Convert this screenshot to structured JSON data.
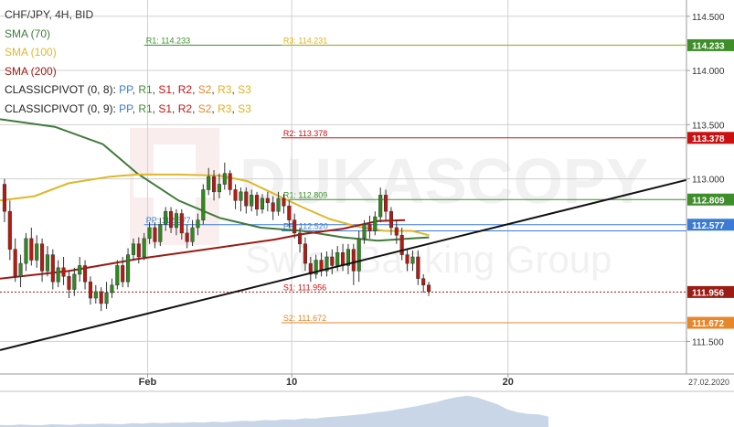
{
  "chart_data": {
    "type": "candlestick",
    "title": "CHF/JPY, 4H, BID",
    "watermark": {
      "brand": "DUKASCOPY",
      "subtitle": "Swiss Banking Group"
    },
    "indicators": [
      {
        "label": "SMA (70)",
        "color": "#3f7a3a"
      },
      {
        "label": "SMA (100)",
        "color": "#e0b72a"
      },
      {
        "label": "SMA (200)",
        "color": "#9b1c14"
      },
      {
        "label": "CLASSICPIVOT (0, 8):",
        "parts": [
          {
            "text": "PP",
            "color": "#3a7bd5"
          },
          {
            "text": "R1",
            "color": "#3e8e2a"
          },
          {
            "text": "S1",
            "color": "#cc1010"
          },
          {
            "text": "R2",
            "color": "#cc1010"
          },
          {
            "text": "S2",
            "color": "#e8862a"
          },
          {
            "text": "R3",
            "color": "#e0b020"
          },
          {
            "text": "S3",
            "color": "#e0b020"
          }
        ]
      },
      {
        "label": "CLASSICPIVOT (0, 9):",
        "parts": [
          {
            "text": "PP",
            "color": "#3a7bd5"
          },
          {
            "text": "R1",
            "color": "#3e8e2a"
          },
          {
            "text": "S1",
            "color": "#cc1010"
          },
          {
            "text": "R2",
            "color": "#cc1010"
          },
          {
            "text": "S2",
            "color": "#e8862a"
          },
          {
            "text": "R3",
            "color": "#e0b020"
          },
          {
            "text": "S3",
            "color": "#e0b020"
          }
        ]
      }
    ],
    "y_ticks": [
      "114.500",
      "114.000",
      "113.500",
      "113.000",
      "111.500"
    ],
    "ylim": [
      111.2,
      114.65
    ],
    "x_ticks": [
      {
        "label": "Feb",
        "x": 0.215
      },
      {
        "label": "10",
        "x": 0.425
      },
      {
        "label": "20",
        "x": 0.74
      }
    ],
    "date_label": "27.02.2020",
    "pivot_lines": [
      {
        "value": 114.233,
        "color": "#3e8e2a",
        "start": 0.21,
        "label": "R1: 114.233",
        "price_label": "114.233"
      },
      {
        "value": 114.231,
        "color": "#e0b020",
        "start": 0.41,
        "label": "R3: 114.231",
        "price_label": null
      },
      {
        "value": 113.378,
        "color": "#cc1010",
        "start": 0.41,
        "label": "R2: 113.378",
        "price_label": "113.378"
      },
      {
        "value": 112.809,
        "color": "#3e8e2a",
        "start": 0.41,
        "label": "R1: 112.809",
        "price_label": "112.809"
      },
      {
        "value": 112.577,
        "color": "#3a7bd5",
        "start": 0.21,
        "label": "PP: 112.577",
        "price_label": "112.577"
      },
      {
        "value": 112.52,
        "color": "#3a7bd5",
        "start": 0.41,
        "label": "PP: 112.520",
        "price_label": null
      },
      {
        "value": 111.672,
        "color": "#e8862a",
        "start": 0.41,
        "label": "S2: 111.672",
        "price_label": "111.672"
      }
    ],
    "current_price": {
      "value": 111.956,
      "color": "#9b1c14",
      "label": "S1: 111.956",
      "price_label": "111.956"
    },
    "trendline": {
      "from": [
        0.0,
        111.42
      ],
      "to": [
        1.0,
        112.99
      ],
      "color": "#111111"
    },
    "candles": [
      [
        112.95,
        112.7,
        113.0,
        112.6
      ],
      [
        112.7,
        112.35,
        112.8,
        112.25
      ],
      [
        112.35,
        112.1,
        112.45,
        112.05
      ],
      [
        112.1,
        112.22,
        112.3,
        112.0
      ],
      [
        112.22,
        112.45,
        112.5,
        112.15
      ],
      [
        112.45,
        112.25,
        112.55,
        112.2
      ],
      [
        112.25,
        112.4,
        112.48,
        112.18
      ],
      [
        112.4,
        112.15,
        112.45,
        112.05
      ],
      [
        112.15,
        112.3,
        112.38,
        112.1
      ],
      [
        112.3,
        112.05,
        112.35,
        111.98
      ],
      [
        112.05,
        112.18,
        112.25,
        112.0
      ],
      [
        112.18,
        112.1,
        112.28,
        112.02
      ],
      [
        112.1,
        111.98,
        112.15,
        111.9
      ],
      [
        111.98,
        112.12,
        112.18,
        111.92
      ],
      [
        112.12,
        112.2,
        112.28,
        112.05
      ],
      [
        112.2,
        112.05,
        112.25,
        111.98
      ],
      [
        112.05,
        111.9,
        112.1,
        111.84
      ],
      [
        111.9,
        111.96,
        112.02,
        111.85
      ],
      [
        111.96,
        111.85,
        112.0,
        111.78
      ],
      [
        111.85,
        111.95,
        112.05,
        111.8
      ],
      [
        111.95,
        112.02,
        112.08,
        111.9
      ],
      [
        112.02,
        112.2,
        112.25,
        111.98
      ],
      [
        112.2,
        112.05,
        112.28,
        112.0
      ],
      [
        112.05,
        112.3,
        112.36,
        112.0
      ],
      [
        112.3,
        112.4,
        112.45,
        112.25
      ],
      [
        112.4,
        112.28,
        112.46,
        112.22
      ],
      [
        112.28,
        112.45,
        112.5,
        112.25
      ],
      [
        112.45,
        112.55,
        112.6,
        112.4
      ],
      [
        112.55,
        112.42,
        112.6,
        112.36
      ],
      [
        112.42,
        112.58,
        112.64,
        112.38
      ],
      [
        112.58,
        112.7,
        112.74,
        112.52
      ],
      [
        112.7,
        112.55,
        112.74,
        112.5
      ],
      [
        112.55,
        112.68,
        112.72,
        112.48
      ],
      [
        112.68,
        112.5,
        112.72,
        112.44
      ],
      [
        112.5,
        112.42,
        112.58,
        112.36
      ],
      [
        112.42,
        112.55,
        112.62,
        112.38
      ],
      [
        112.55,
        112.62,
        112.68,
        112.48
      ],
      [
        112.62,
        112.9,
        112.95,
        112.58
      ],
      [
        112.9,
        113.02,
        113.1,
        112.85
      ],
      [
        113.02,
        112.88,
        113.08,
        112.8
      ],
      [
        112.88,
        112.95,
        113.05,
        112.82
      ],
      [
        112.95,
        113.05,
        113.15,
        112.9
      ],
      [
        113.05,
        112.9,
        113.08,
        112.85
      ],
      [
        112.9,
        112.8,
        112.95,
        112.72
      ],
      [
        112.8,
        112.88,
        112.92,
        112.7
      ],
      [
        112.88,
        112.75,
        112.92,
        112.68
      ],
      [
        112.75,
        112.85,
        112.9,
        112.7
      ],
      [
        112.85,
        112.72,
        112.88,
        112.66
      ],
      [
        112.72,
        112.82,
        112.86,
        112.68
      ],
      [
        112.82,
        112.78,
        112.88,
        112.7
      ],
      [
        112.78,
        112.7,
        112.84,
        112.62
      ],
      [
        112.7,
        112.82,
        112.88,
        112.66
      ],
      [
        112.82,
        112.75,
        112.86,
        112.68
      ],
      [
        112.75,
        112.62,
        112.8,
        112.55
      ],
      [
        112.62,
        112.5,
        112.68,
        112.45
      ],
      [
        112.5,
        112.4,
        112.55,
        112.32
      ],
      [
        112.4,
        112.22,
        112.46,
        112.15
      ],
      [
        112.22,
        112.12,
        112.28,
        112.05
      ],
      [
        112.12,
        112.25,
        112.3,
        112.08
      ],
      [
        112.25,
        112.15,
        112.32,
        112.1
      ],
      [
        112.15,
        112.28,
        112.33,
        112.1
      ],
      [
        112.28,
        112.2,
        112.35,
        112.12
      ],
      [
        112.2,
        112.32,
        112.38,
        112.15
      ],
      [
        112.32,
        112.2,
        112.4,
        112.15
      ],
      [
        112.2,
        112.35,
        112.4,
        112.12
      ],
      [
        112.35,
        112.15,
        112.4,
        112.02
      ],
      [
        112.15,
        112.45,
        112.52,
        112.05
      ],
      [
        112.45,
        112.58,
        112.62,
        112.4
      ],
      [
        112.58,
        112.52,
        112.66,
        112.45
      ],
      [
        112.52,
        112.65,
        112.7,
        112.48
      ],
      [
        112.65,
        112.85,
        112.92,
        112.6
      ],
      [
        112.85,
        112.7,
        112.9,
        112.62
      ],
      [
        112.7,
        112.55,
        112.74,
        112.48
      ],
      [
        112.55,
        112.48,
        112.62,
        112.4
      ],
      [
        112.48,
        112.3,
        112.55,
        112.25
      ],
      [
        112.3,
        112.22,
        112.36,
        112.15
      ],
      [
        112.22,
        112.28,
        112.34,
        112.15
      ],
      [
        112.28,
        112.08,
        112.34,
        112.02
      ],
      [
        112.08,
        112.02,
        112.12,
        111.95
      ],
      [
        112.02,
        111.96,
        112.05,
        111.92
      ]
    ],
    "sma70": [
      [
        0.0,
        113.55
      ],
      [
        0.08,
        113.48
      ],
      [
        0.15,
        113.32
      ],
      [
        0.2,
        113.05
      ],
      [
        0.26,
        112.8
      ],
      [
        0.32,
        112.64
      ],
      [
        0.38,
        112.55
      ],
      [
        0.44,
        112.52
      ],
      [
        0.5,
        112.46
      ],
      [
        0.55,
        112.43
      ],
      [
        0.6,
        112.45
      ],
      [
        0.625,
        112.46
      ]
    ],
    "sma100": [
      [
        0.0,
        112.8
      ],
      [
        0.05,
        112.84
      ],
      [
        0.1,
        112.96
      ],
      [
        0.16,
        113.02
      ],
      [
        0.2,
        113.04
      ],
      [
        0.26,
        113.04
      ],
      [
        0.32,
        113.03
      ],
      [
        0.36,
        112.98
      ],
      [
        0.4,
        112.86
      ],
      [
        0.44,
        112.74
      ],
      [
        0.48,
        112.63
      ],
      [
        0.52,
        112.56
      ],
      [
        0.56,
        112.52
      ],
      [
        0.6,
        112.52
      ],
      [
        0.625,
        112.48
      ]
    ],
    "sma200": [
      [
        0.0,
        112.08
      ],
      [
        0.1,
        112.15
      ],
      [
        0.2,
        112.26
      ],
      [
        0.3,
        112.35
      ],
      [
        0.4,
        112.44
      ],
      [
        0.44,
        112.49
      ],
      [
        0.5,
        112.54
      ],
      [
        0.55,
        112.61
      ],
      [
        0.59,
        112.62
      ]
    ],
    "volume_profile": [
      0.06,
      0.05,
      0.07,
      0.06,
      0.05,
      0.08,
      0.07,
      0.06,
      0.09,
      0.08,
      0.1,
      0.09,
      0.08,
      0.11,
      0.1,
      0.12,
      0.11,
      0.13,
      0.12,
      0.14,
      0.13,
      0.15,
      0.14,
      0.16,
      0.18,
      0.17,
      0.2,
      0.19,
      0.22,
      0.21,
      0.25,
      0.24,
      0.28,
      0.3,
      0.32,
      0.35,
      0.38,
      0.42,
      0.45,
      0.5,
      0.55,
      0.6,
      0.66,
      0.72,
      0.8,
      0.86,
      0.9,
      0.85,
      0.75,
      0.65,
      0.5,
      0.42,
      0.38,
      0.36,
      0.3
    ],
    "colors": {
      "up": "#2e8b1e",
      "down": "#b51b12",
      "grid": "#d0d0d0",
      "axis_text": "#333333",
      "volume": "#b7c8e0"
    }
  }
}
